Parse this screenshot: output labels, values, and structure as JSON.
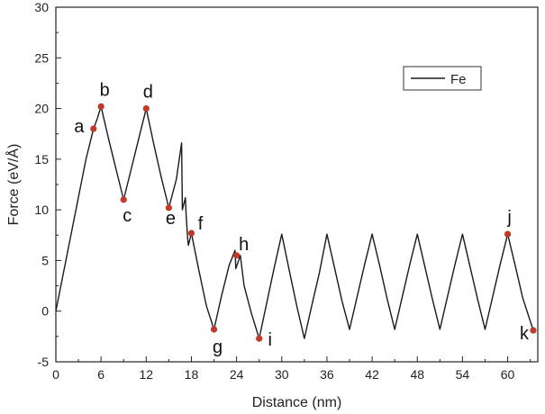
{
  "chart_data": {
    "type": "line",
    "title": "",
    "xlabel": "Distance (nm)",
    "ylabel": "Force (eV/Å)",
    "xlim": [
      0,
      64
    ],
    "ylim": [
      -5,
      30
    ],
    "xticks": [
      0,
      6,
      12,
      18,
      24,
      30,
      36,
      42,
      48,
      54,
      60
    ],
    "yticks": [
      -5,
      0,
      5,
      10,
      15,
      20,
      25,
      30
    ],
    "legend": {
      "position": "top-right",
      "entries": [
        "Fe"
      ]
    },
    "series": [
      {
        "name": "Fe",
        "color": "#1a1a1a",
        "x": [
          0,
          2,
          4,
          5,
          5.5,
          6,
          7,
          8,
          9,
          10,
          11,
          12,
          13,
          14,
          15,
          16,
          16.7,
          16.8,
          17.2,
          17.3,
          17.5,
          17.6,
          18,
          19,
          20,
          21,
          22,
          23,
          23.8,
          23.9,
          24.5,
          25,
          26,
          27,
          28,
          29,
          30,
          31,
          32,
          33,
          34,
          35,
          36,
          37,
          38,
          39,
          40,
          41,
          42,
          43,
          44,
          45,
          46,
          47,
          48,
          49,
          50,
          51,
          52,
          53,
          54,
          55,
          56,
          57,
          58,
          59,
          60,
          61,
          62,
          63.4
        ],
        "y": [
          0,
          7.5,
          15,
          18,
          19,
          20.2,
          17,
          14,
          11,
          14,
          17,
          20,
          16.5,
          13.2,
          10.2,
          13,
          16.6,
          10,
          11.2,
          9.5,
          7.2,
          6.5,
          7.7,
          4,
          0.5,
          -1.8,
          1.5,
          4.5,
          6,
          4.2,
          5.5,
          2.5,
          -0.3,
          -2.7,
          0.8,
          4.3,
          7.6,
          4,
          0.5,
          -2.7,
          0.6,
          3.8,
          7.6,
          4.3,
          1,
          -1.8,
          1.4,
          4.6,
          7.6,
          4.5,
          1.2,
          -1.8,
          1.4,
          4.6,
          7.6,
          4.4,
          1.2,
          -1.8,
          1.4,
          4.6,
          7.6,
          4.4,
          1.2,
          -1.8,
          1.4,
          4.6,
          7.6,
          4.5,
          1.3,
          -1.9
        ]
      }
    ],
    "annotations": [
      {
        "label": "a",
        "x": 5,
        "y": 18.0
      },
      {
        "label": "b",
        "x": 6,
        "y": 20.2
      },
      {
        "label": "c",
        "x": 9,
        "y": 11.0
      },
      {
        "label": "d",
        "x": 12,
        "y": 20.0
      },
      {
        "label": "e",
        "x": 15,
        "y": 10.2
      },
      {
        "label": "f",
        "x": 18,
        "y": 7.7
      },
      {
        "label": "g",
        "x": 21,
        "y": -1.8
      },
      {
        "label": "h",
        "x": 24,
        "y": 5.5
      },
      {
        "label": "i",
        "x": 27,
        "y": -2.7
      },
      {
        "label": "j",
        "x": 60,
        "y": 7.6
      },
      {
        "label": "k",
        "x": 63.4,
        "y": -1.9
      }
    ],
    "marker_color": "#c0392b"
  }
}
